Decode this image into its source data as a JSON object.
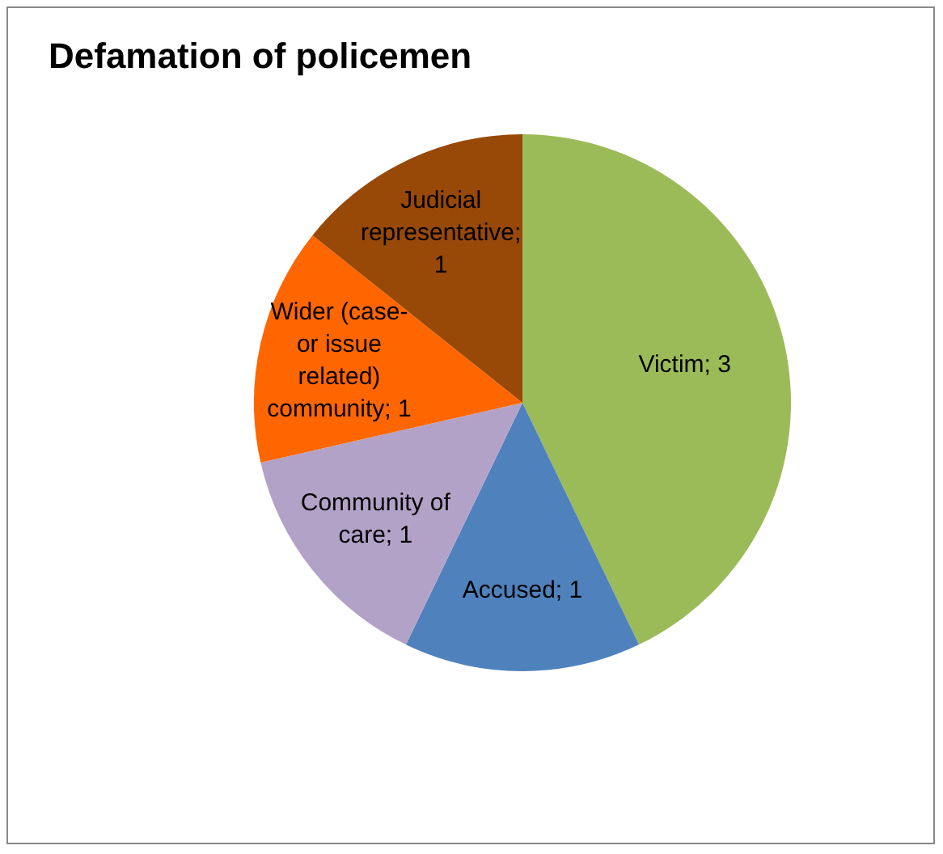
{
  "chart_data": {
    "type": "pie",
    "title": "Defamation of policemen",
    "categories": [
      "Victim; 3",
      "Accused; 1",
      "Community of care; 1",
      "Wider (case- or issue related) community; 1",
      "Judicial representative; 1"
    ],
    "values": [
      3,
      1,
      1,
      1,
      1
    ],
    "colors": [
      "#9bbb59",
      "#4f81bd",
      "#b3a2c7",
      "#ff6600",
      "#984807"
    ],
    "legend": false
  }
}
